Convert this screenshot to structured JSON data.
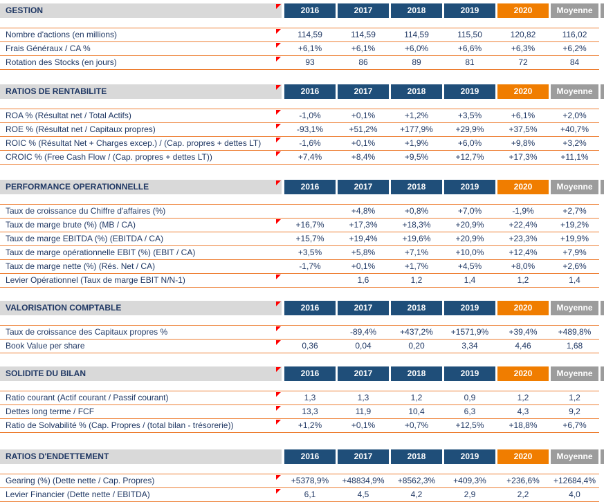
{
  "columns": [
    "2016",
    "2017",
    "2018",
    "2019",
    "2020",
    "Moyenne"
  ],
  "colors": {
    "navy": "#1F4E79",
    "orange_2020": "#F07D00",
    "gray_moyenne": "#9C9C9C",
    "section_bar_bg": "#D9D9D9",
    "row_border": "#ED7D31",
    "text": "#203864",
    "comment_marker": "#FF0000"
  },
  "sections": [
    {
      "title": "GESTION",
      "header_marker": true,
      "rows": [
        {
          "label": "Nombre d'actions (en millions)",
          "marker": true,
          "values": [
            "114,59",
            "114,59",
            "114,59",
            "115,50",
            "120,82",
            "116,02"
          ]
        },
        {
          "label": "Frais Généraux / CA %",
          "marker": true,
          "values": [
            "+6,1%",
            "+6,1%",
            "+6,0%",
            "+6,6%",
            "+6,3%",
            "+6,2%"
          ]
        },
        {
          "label": "Rotation des Stocks (en jours)",
          "marker": true,
          "values": [
            "93",
            "86",
            "89",
            "81",
            "72",
            "84"
          ]
        }
      ]
    },
    {
      "title": "RATIOS DE RENTABILITE",
      "header_marker": true,
      "rows": [
        {
          "label": "ROA % (Résultat net / Total Actifs)",
          "marker": true,
          "values": [
            "-1,0%",
            "+0,1%",
            "+1,2%",
            "+3,5%",
            "+6,1%",
            "+2,0%"
          ]
        },
        {
          "label": "ROE % (Résultat net / Capitaux propres)",
          "marker": true,
          "values": [
            "-93,1%",
            "+51,2%",
            "+177,9%",
            "+29,9%",
            "+37,5%",
            "+40,7%"
          ]
        },
        {
          "label": "ROIC % (Résultat Net + Charges excep.) / (Cap. propres + dettes LT)",
          "marker": true,
          "values": [
            "-1,6%",
            "+0,1%",
            "+1,9%",
            "+6,0%",
            "+9,8%",
            "+3,2%"
          ]
        },
        {
          "label": "CROIC % (Free Cash Flow / (Cap. propres + dettes LT))",
          "marker": true,
          "values": [
            "+7,4%",
            "+8,4%",
            "+9,5%",
            "+12,7%",
            "+17,3%",
            "+11,1%"
          ]
        }
      ]
    },
    {
      "title": "PERFORMANCE OPERATIONNELLE",
      "header_marker": true,
      "rows": [
        {
          "label": "Taux de croissance du Chiffre d'affaires (%)",
          "marker": false,
          "values": [
            "",
            "+4,8%",
            "+0,8%",
            "+7,0%",
            "-1,9%",
            "+2,7%"
          ]
        },
        {
          "label": "Taux de marge brute (%) (MB / CA)",
          "marker": true,
          "values": [
            "+16,7%",
            "+17,3%",
            "+18,3%",
            "+20,9%",
            "+22,4%",
            "+19,2%"
          ]
        },
        {
          "label": "Taux de marge EBITDA (%) (EBITDA / CA)",
          "marker": false,
          "values": [
            "+15,7%",
            "+19,4%",
            "+19,6%",
            "+20,9%",
            "+23,3%",
            "+19,9%"
          ]
        },
        {
          "label": "Taux de marge opérationnelle EBIT (%) (EBIT / CA)",
          "marker": false,
          "values": [
            "+3,5%",
            "+5,8%",
            "+7,1%",
            "+10,0%",
            "+12,4%",
            "+7,9%"
          ]
        },
        {
          "label": "Taux de marge nette (%) (Rés. Net / CA)",
          "marker": false,
          "values": [
            "-1,7%",
            "+0,1%",
            "+1,7%",
            "+4,5%",
            "+8,0%",
            "+2,6%"
          ]
        },
        {
          "label": "Levier Opérationnel (Taux de marge EBIT N/N-1)",
          "marker": true,
          "values": [
            "",
            "1,6",
            "1,2",
            "1,4",
            "1,2",
            "1,4"
          ]
        }
      ]
    },
    {
      "title": "VALORISATION COMPTABLE",
      "header_marker": true,
      "rows": [
        {
          "label": "Taux de croissance des Capitaux propres %",
          "marker": true,
          "values": [
            "",
            "-89,4%",
            "+437,2%",
            "+1571,9%",
            "+39,4%",
            "+489,8%"
          ]
        },
        {
          "label": "Book Value per share",
          "marker": true,
          "values": [
            "0,36",
            "0,04",
            "0,20",
            "3,34",
            "4,46",
            "1,68"
          ]
        }
      ]
    },
    {
      "title": "SOLIDITE DU BILAN",
      "header_marker": true,
      "rows": [
        {
          "label": "Ratio courant (Actif courant / Passif courant)",
          "marker": true,
          "values": [
            "1,3",
            "1,3",
            "1,2",
            "0,9",
            "1,2",
            "1,2"
          ]
        },
        {
          "label": "Dettes long terme / FCF",
          "marker": true,
          "values": [
            "13,3",
            "11,9",
            "10,4",
            "6,3",
            "4,3",
            "9,2"
          ]
        },
        {
          "label": "Ratio de Solvabilité % (Cap. Propres / (total bilan - trésorerie))",
          "marker": true,
          "values": [
            "+1,2%",
            "+0,1%",
            "+0,7%",
            "+12,5%",
            "+18,8%",
            "+6,7%"
          ]
        }
      ]
    },
    {
      "title": "RATIOS D'ENDETTEMENT",
      "header_marker": false,
      "rows": [
        {
          "label": "Gearing (%) (Dette nette / Cap. Propres)",
          "marker": true,
          "values": [
            "+5378,9%",
            "+48834,9%",
            "+8562,3%",
            "+409,3%",
            "+236,6%",
            "+12684,4%"
          ]
        },
        {
          "label": "Levier Financier (Dette nette / EBITDA)",
          "marker": true,
          "values": [
            "6,1",
            "4,5",
            "4,2",
            "2,9",
            "2,2",
            "4,0"
          ]
        }
      ]
    }
  ]
}
